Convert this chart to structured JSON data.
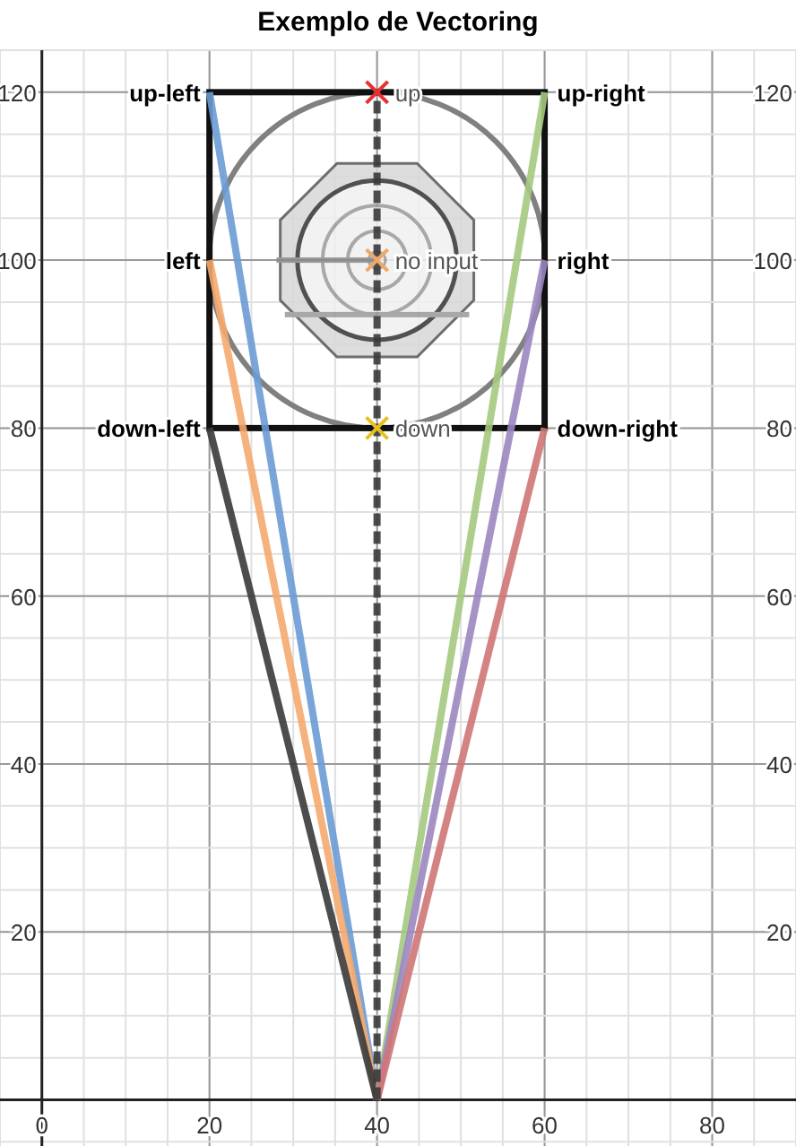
{
  "chart_data": {
    "type": "line",
    "title": "Exemplo de Vectoring",
    "xlim": [
      -5,
      90
    ],
    "ylim": [
      -5.5,
      125
    ],
    "xticks": [
      0,
      20,
      40,
      60,
      80
    ],
    "yticks": [
      20,
      40,
      60,
      80,
      100,
      120
    ],
    "y2lim": [
      -5.5,
      125
    ],
    "y2ticks": [
      20,
      40,
      60,
      80,
      100,
      120
    ],
    "grid": true,
    "series": [
      {
        "type": "line",
        "color": "#6a9bd4",
        "x": [
          40,
          20
        ],
        "values": [
          0,
          120
        ],
        "marker": "none",
        "line_style": "solid"
      },
      {
        "type": "line",
        "color": "#f5aa6e",
        "x": [
          40,
          20
        ],
        "values": [
          0,
          100
        ],
        "marker": "none",
        "line_style": "solid"
      },
      {
        "type": "line",
        "color": "#3a3a3a",
        "x": [
          40,
          20
        ],
        "values": [
          0,
          80
        ],
        "marker": "none",
        "line_style": "solid"
      },
      {
        "type": "line",
        "color": "#a5c97f",
        "x": [
          40,
          60
        ],
        "values": [
          0,
          120
        ],
        "marker": "none",
        "line_style": "solid"
      },
      {
        "type": "line",
        "color": "#9b87c0",
        "x": [
          40,
          60
        ],
        "values": [
          0,
          100
        ],
        "marker": "none",
        "line_style": "solid"
      },
      {
        "type": "line",
        "color": "#cf7575",
        "x": [
          40,
          60
        ],
        "values": [
          0,
          80
        ],
        "marker": "none",
        "line_style": "solid"
      },
      {
        "type": "line",
        "color": "#3a3a3a",
        "x": [
          40,
          40
        ],
        "values": [
          0,
          120
        ],
        "marker": "none",
        "line_style": "dashed"
      },
      {
        "type": "scatter",
        "color": "#e83030",
        "x": [
          40
        ],
        "values": [
          120
        ],
        "marker": "cross"
      },
      {
        "type": "scatter",
        "color": "#f0a868",
        "x": [
          40
        ],
        "values": [
          100
        ],
        "marker": "cross"
      },
      {
        "type": "scatter",
        "color": "#e8c020",
        "x": [
          40
        ],
        "values": [
          80
        ],
        "marker": "cross"
      }
    ],
    "annotations": [
      {
        "text": "up-left",
        "x": 20,
        "y": 120
      },
      {
        "text": "left",
        "x": 20,
        "y": 100
      },
      {
        "text": "down-left",
        "x": 20,
        "y": 80
      },
      {
        "text": "up-right",
        "x": 60,
        "y": 120
      },
      {
        "text": "right",
        "x": 60,
        "y": 100
      },
      {
        "text": "down-right",
        "x": 60,
        "y": 80
      },
      {
        "text": "up",
        "x": 40,
        "y": 120
      },
      {
        "text": "no input",
        "x": 40,
        "y": 100
      },
      {
        "text": "down",
        "x": 40,
        "y": 80
      }
    ]
  }
}
